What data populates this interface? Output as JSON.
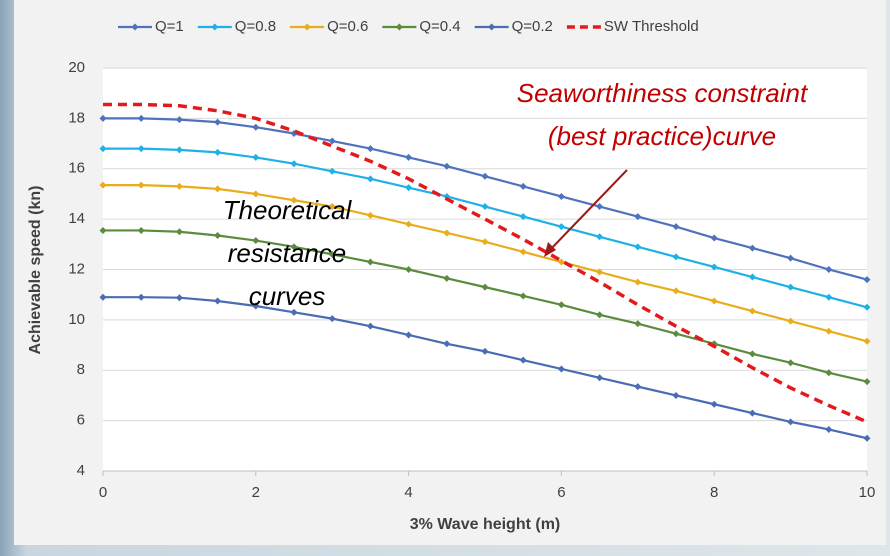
{
  "chart_data": {
    "type": "line",
    "x_label": "3% Wave height (m)",
    "y_label": "Achievable speed (kn)",
    "x": [
      0,
      0.5,
      1,
      1.5,
      2,
      2.5,
      3,
      3.5,
      4,
      4.5,
      5,
      5.5,
      6,
      6.5,
      7,
      7.5,
      8,
      8.5,
      9,
      9.5,
      10
    ],
    "xlim": [
      0,
      10
    ],
    "xticks": [
      0,
      2,
      4,
      6,
      8,
      10
    ],
    "ylim": [
      4,
      20
    ],
    "yticks": [
      4,
      6,
      8,
      10,
      12,
      14,
      16,
      18,
      20
    ],
    "grid": true,
    "legend": "top",
    "series": [
      {
        "name": "Q=1",
        "color": "#4f72bc",
        "values": [
          18,
          18,
          17.95,
          17.85,
          17.65,
          17.4,
          17.1,
          16.8,
          16.45,
          16.1,
          15.7,
          15.3,
          14.9,
          14.5,
          14.1,
          13.7,
          13.25,
          12.85,
          12.45,
          12.0,
          11.6
        ]
      },
      {
        "name": "Q=0.8",
        "color": "#1fb0e6",
        "values": [
          16.8,
          16.8,
          16.75,
          16.65,
          16.45,
          16.2,
          15.9,
          15.6,
          15.25,
          14.9,
          14.5,
          14.1,
          13.7,
          13.3,
          12.9,
          12.5,
          12.1,
          11.7,
          11.3,
          10.9,
          10.5
        ]
      },
      {
        "name": "Q=0.6",
        "color": "#e8ad1a",
        "values": [
          15.35,
          15.35,
          15.3,
          15.2,
          15.0,
          14.75,
          14.5,
          14.15,
          13.8,
          13.45,
          13.1,
          12.7,
          12.3,
          11.9,
          11.5,
          11.15,
          10.75,
          10.35,
          9.95,
          9.55,
          9.15
        ]
      },
      {
        "name": "Q=0.4",
        "color": "#5b8c3e",
        "values": [
          13.55,
          13.55,
          13.5,
          13.35,
          13.15,
          12.9,
          12.6,
          12.3,
          12.0,
          11.65,
          11.3,
          10.95,
          10.6,
          10.2,
          9.85,
          9.45,
          9.05,
          8.65,
          8.3,
          7.9,
          7.55
        ]
      },
      {
        "name": "Q=0.2",
        "color": "#4a6cb3",
        "values": [
          10.9,
          10.9,
          10.88,
          10.75,
          10.55,
          10.3,
          10.05,
          9.75,
          9.4,
          9.05,
          8.75,
          8.4,
          8.05,
          7.7,
          7.35,
          7.0,
          6.65,
          6.3,
          5.95,
          5.65,
          5.3
        ]
      },
      {
        "name": "SW Threshold",
        "color": "#e31a1c",
        "dashed": true,
        "values": [
          18.55,
          18.55,
          18.5,
          18.3,
          18.0,
          17.5,
          16.9,
          16.3,
          15.6,
          14.8,
          14.0,
          13.2,
          12.35,
          11.5,
          10.6,
          9.75,
          8.95,
          8.1,
          7.3,
          6.6,
          5.95
        ]
      }
    ],
    "annotations": [
      {
        "lines": [
          "Seaworthiness constraint",
          "(best practice)curve"
        ],
        "color": "#c00000"
      },
      {
        "lines": [
          "Theoretical",
          "resistance",
          "curves"
        ],
        "color": "#000000"
      }
    ]
  }
}
